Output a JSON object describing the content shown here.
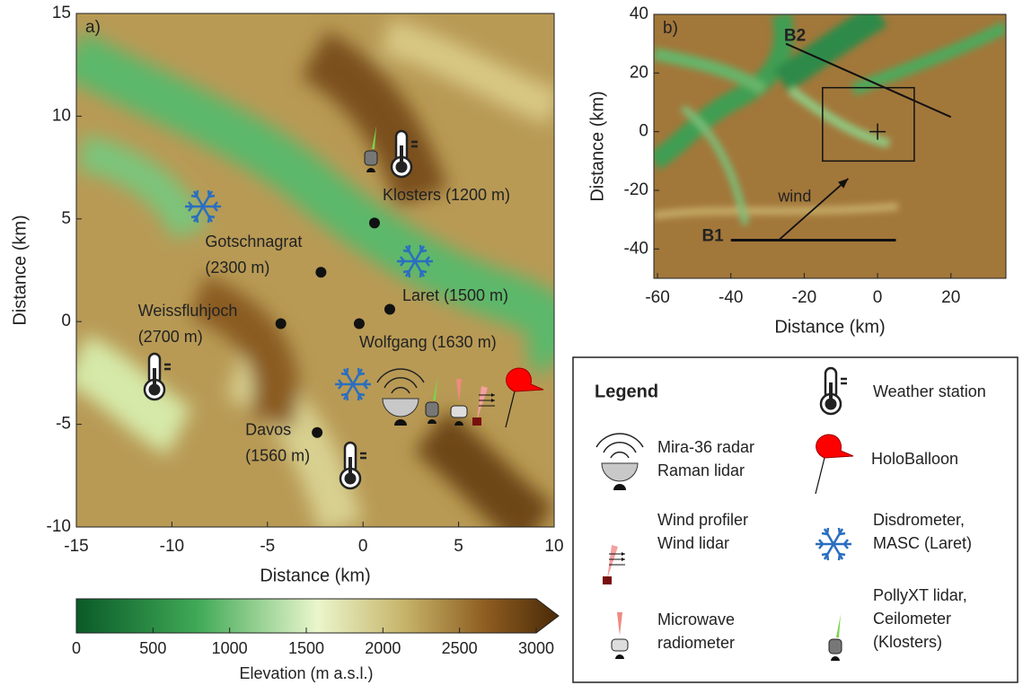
{
  "panel_a": {
    "label": "a)",
    "xlabel": "Distance (km)",
    "ylabel": "Distance (km)",
    "xlim": [
      -15,
      10
    ],
    "ylim": [
      -10,
      15
    ],
    "xticks": [
      -15,
      -10,
      -5,
      0,
      5,
      10
    ],
    "yticks": [
      -10,
      -5,
      0,
      5,
      10,
      15
    ],
    "sites": [
      {
        "label": [
          "Klosters (1200 m)"
        ],
        "x": 0.6,
        "y": 4.8
      },
      {
        "label": [
          "Gotschnagrat",
          "(2300 m)"
        ],
        "x": -2.2,
        "y": 2.4
      },
      {
        "label": [
          "Laret (1500 m)"
        ],
        "x": 1.4,
        "y": 0.6
      },
      {
        "label": [
          "Wolfgang (1630 m)"
        ],
        "x": -0.2,
        "y": -0.1
      },
      {
        "label": [
          "Weissfluhjoch",
          "(2700 m)"
        ],
        "x": -4.3,
        "y": -0.1
      },
      {
        "label": [
          "Davos",
          "(1560 m)"
        ],
        "x": -2.4,
        "y": -5.4
      }
    ]
  },
  "panel_b": {
    "label": "b)",
    "xlabel": "Distance (km)",
    "ylabel": "Distance (km)",
    "xlim": [
      -61,
      35
    ],
    "ylim": [
      -50,
      40
    ],
    "xticks": [
      -60,
      -40,
      -20,
      0,
      20
    ],
    "yticks": [
      -40,
      -20,
      0,
      20,
      40
    ],
    "transects": [
      {
        "label": "B1",
        "x": [
          -40,
          5
        ],
        "y": [
          -37,
          -37
        ]
      },
      {
        "label": "B2",
        "x": [
          -25,
          20
        ],
        "y": [
          30,
          5
        ]
      }
    ],
    "domain": {
      "x": [
        -15,
        10
      ],
      "y": [
        -10,
        15
      ]
    },
    "center": {
      "x": 0,
      "y": 0
    },
    "wind": {
      "label": "wind",
      "x": [
        -27,
        -8
      ],
      "y": [
        -37,
        -16
      ]
    }
  },
  "colorbar": {
    "label": "Elevation (m a.s.l.)",
    "lim": [
      0,
      3000
    ],
    "ticks": [
      0,
      500,
      1000,
      1500,
      2000,
      2500,
      3000
    ]
  },
  "legend": {
    "title": "Legend",
    "entries": [
      [
        "Weather station"
      ],
      [
        "Mira-36 radar",
        "Raman lidar"
      ],
      [
        "HoloBalloon"
      ],
      [
        "Wind profiler",
        "Wind lidar"
      ],
      [
        "Disdrometer,",
        "MASC (Laret)"
      ],
      [
        "Microwave",
        "radiometer"
      ],
      [
        "PollyXT lidar,",
        "Ceilometer",
        "(Klosters)"
      ]
    ]
  }
}
